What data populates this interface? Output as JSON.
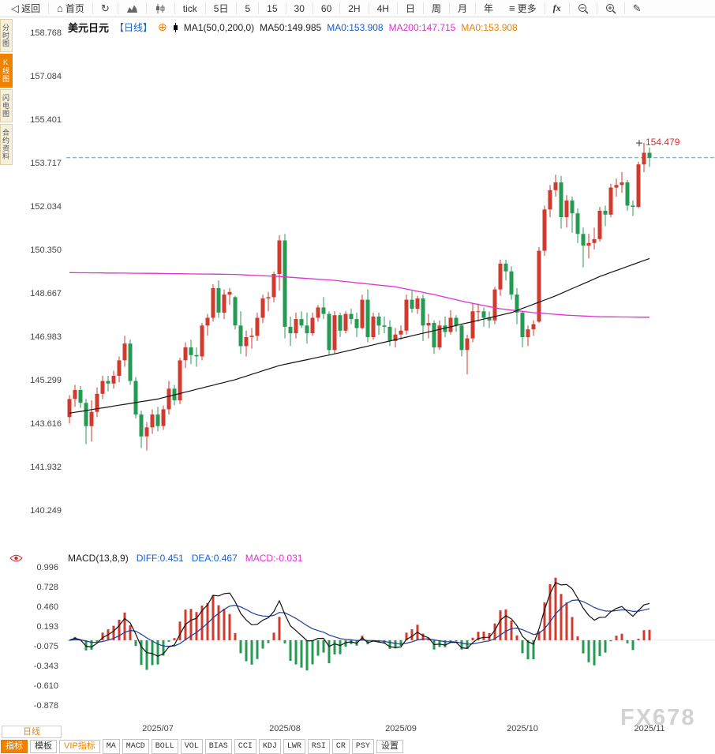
{
  "toolbar": {
    "back": "返回",
    "home": "首页",
    "periods": [
      "tick",
      "5日",
      "5",
      "15",
      "30",
      "60",
      "2H",
      "4H",
      "日",
      "周",
      "月",
      "年"
    ],
    "more": "更多",
    "fx": "fx"
  },
  "side_tabs": [
    {
      "label": "分时图",
      "active": false
    },
    {
      "label": "K线图",
      "active": true
    },
    {
      "label": "闪电图",
      "active": false
    },
    {
      "label": "合约资料",
      "active": false
    }
  ],
  "price_header": {
    "symbol": "美元日元",
    "period_tag": "【日线】",
    "ma_params": "MA1(50,0,200,0)",
    "ma50_label": "MA50:149.985",
    "ma0_blue": "MA0:153.908",
    "ma200_label": "MA200:147.715",
    "ma0_orange": "MA0:153.908"
  },
  "macd_header": {
    "params": "MACD(13,8,9)",
    "diff": "DIFF:0.451",
    "dea": "DEA:0.467",
    "macd": "MACD:-0.031"
  },
  "bottom": {
    "period_box": "日线",
    "tabs": [
      {
        "label": "指标",
        "style": "active"
      },
      {
        "label": "模板",
        "style": "plain"
      },
      {
        "label": "VIP指标",
        "style": "vip"
      },
      {
        "label": "MA",
        "style": "mono"
      },
      {
        "label": "MACD",
        "style": "mono"
      },
      {
        "label": "BOLL",
        "style": "mono"
      },
      {
        "label": "VOL",
        "style": "mono"
      },
      {
        "label": "BIAS",
        "style": "mono"
      },
      {
        "label": "CCI",
        "style": "mono"
      },
      {
        "label": "KDJ",
        "style": "mono"
      },
      {
        "label": "LWR",
        "style": "mono"
      },
      {
        "label": "RSI",
        "style": "mono"
      },
      {
        "label": "CR",
        "style": "mono"
      },
      {
        "label": "PSY",
        "style": "mono"
      },
      {
        "label": "设置",
        "style": "plain"
      }
    ]
  },
  "watermark": "FX678",
  "chart_data": [
    {
      "type": "candlestick",
      "title": "美元日元 日线",
      "y_ticks": [
        158.768,
        157.084,
        155.401,
        153.717,
        152.034,
        150.35,
        148.667,
        146.983,
        145.299,
        143.616,
        141.932,
        140.249
      ],
      "x_ticks": [
        "2025/07",
        "2025/08",
        "2025/09",
        "2025/10",
        "2025/11"
      ],
      "last_price": 153.908,
      "annotation": {
        "candle_date": "10-31",
        "price": 154.479,
        "label": "154.479"
      },
      "ma50_points": [
        [
          0,
          144.0
        ],
        [
          16,
          144.55
        ],
        [
          30,
          145.3
        ],
        [
          38,
          145.85
        ],
        [
          48,
          146.3
        ],
        [
          59,
          146.85
        ],
        [
          70,
          147.4
        ],
        [
          80,
          147.9
        ],
        [
          88,
          148.55
        ],
        [
          96,
          149.3
        ],
        [
          105,
          150.0
        ]
      ],
      "ma200_points": [
        [
          0,
          149.45
        ],
        [
          16,
          149.42
        ],
        [
          30,
          149.38
        ],
        [
          38,
          149.3
        ],
        [
          48,
          149.15
        ],
        [
          59,
          148.9
        ],
        [
          66,
          148.6
        ],
        [
          72,
          148.3
        ],
        [
          78,
          148.05
        ],
        [
          84,
          147.9
        ],
        [
          90,
          147.8
        ],
        [
          96,
          147.74
        ],
        [
          105,
          147.72
        ]
      ],
      "colors": {
        "up": "#cf3b2e",
        "down": "#249a52",
        "ma_fast": "#111111",
        "ma_slow": "#e12fd2",
        "price_line": "#2bb3bd",
        "marker": "#e22c2c",
        "diff_line": "#111111",
        "dea_line": "#1b3f9e",
        "hist_up": "#cf3b2e",
        "hist_down": "#249a52"
      },
      "candles": [
        [
          "06-09",
          143.85,
          144.7,
          143.6,
          144.55
        ],
        [
          "06-10",
          144.55,
          145.1,
          144.25,
          144.9
        ],
        [
          "06-11",
          144.9,
          145.05,
          144.2,
          144.4
        ],
        [
          "06-12",
          144.4,
          144.55,
          142.8,
          143.5
        ],
        [
          "06-13",
          143.5,
          144.5,
          142.9,
          144.05
        ],
        [
          "06-16",
          144.05,
          145.0,
          143.85,
          144.75
        ],
        [
          "06-17",
          144.75,
          145.45,
          144.55,
          145.25
        ],
        [
          "06-18",
          145.25,
          145.45,
          144.85,
          145.15
        ],
        [
          "06-19",
          145.15,
          145.65,
          144.95,
          145.45
        ],
        [
          "06-20",
          145.45,
          146.2,
          145.2,
          146.05
        ],
        [
          "06-23",
          146.05,
          147.0,
          145.8,
          146.7
        ],
        [
          "06-24",
          146.7,
          146.85,
          145.1,
          145.25
        ],
        [
          "06-25",
          145.25,
          145.4,
          143.8,
          143.95
        ],
        [
          "06-26",
          143.95,
          144.1,
          142.65,
          143.1
        ],
        [
          "06-27",
          143.1,
          143.65,
          142.55,
          143.45
        ],
        [
          "06-30",
          143.45,
          144.15,
          143.2,
          143.95
        ],
        [
          "07-01",
          143.95,
          144.25,
          143.3,
          143.5
        ],
        [
          "07-02",
          143.5,
          144.3,
          143.35,
          144.15
        ],
        [
          "07-03",
          144.15,
          145.25,
          143.95,
          144.95
        ],
        [
          "07-04",
          144.95,
          145.1,
          144.3,
          144.5
        ],
        [
          "07-07",
          144.5,
          146.15,
          144.35,
          146.05
        ],
        [
          "07-08",
          146.05,
          146.75,
          145.75,
          146.55
        ],
        [
          "07-09",
          146.55,
          146.85,
          145.9,
          146.25
        ],
        [
          "07-10",
          146.25,
          146.55,
          145.8,
          146.2
        ],
        [
          "07-11",
          146.2,
          147.5,
          146.05,
          147.4
        ],
        [
          "07-14",
          147.4,
          147.85,
          147.0,
          147.7
        ],
        [
          "07-15",
          147.7,
          149.0,
          147.55,
          148.85
        ],
        [
          "07-16",
          148.85,
          149.15,
          147.7,
          147.9
        ],
        [
          "07-17",
          147.9,
          148.8,
          147.65,
          148.6
        ],
        [
          "07-18",
          148.6,
          148.85,
          148.2,
          148.7
        ],
        [
          "07-21",
          148.5,
          148.55,
          147.25,
          147.4
        ],
        [
          "07-22",
          147.4,
          147.95,
          146.3,
          146.6
        ],
        [
          "07-23",
          146.6,
          147.2,
          146.2,
          146.95
        ],
        [
          "07-24",
          146.95,
          147.3,
          146.5,
          147.0
        ],
        [
          "07-25",
          147.0,
          147.9,
          146.8,
          147.7
        ],
        [
          "07-28",
          147.7,
          148.6,
          147.5,
          148.45
        ],
        [
          "07-29",
          148.45,
          148.7,
          147.95,
          148.5
        ],
        [
          "07-30",
          148.5,
          149.5,
          148.3,
          149.4
        ],
        [
          "07-31",
          149.4,
          150.9,
          148.75,
          150.7
        ],
        [
          "08-01",
          150.7,
          150.95,
          146.9,
          147.35
        ],
        [
          "08-04",
          147.35,
          147.75,
          146.6,
          147.1
        ],
        [
          "08-05",
          147.1,
          147.9,
          146.9,
          147.65
        ],
        [
          "08-06",
          147.65,
          147.95,
          147.3,
          147.4
        ],
        [
          "08-07",
          147.4,
          147.9,
          146.7,
          147.1
        ],
        [
          "08-08",
          147.1,
          147.9,
          147.0,
          147.7
        ],
        [
          "08-11",
          147.7,
          148.2,
          147.55,
          148.1
        ],
        [
          "08-12",
          148.1,
          148.5,
          147.65,
          147.85
        ],
        [
          "08-13",
          147.85,
          147.95,
          146.25,
          146.45
        ],
        [
          "08-14",
          146.45,
          147.95,
          146.3,
          147.8
        ],
        [
          "08-15",
          147.8,
          147.9,
          146.95,
          147.2
        ],
        [
          "08-18",
          147.2,
          147.95,
          147.1,
          147.85
        ],
        [
          "08-19",
          147.85,
          148.05,
          147.45,
          147.65
        ],
        [
          "08-20",
          147.65,
          147.9,
          146.95,
          147.3
        ],
        [
          "08-21",
          147.3,
          148.6,
          147.25,
          148.4
        ],
        [
          "08-22",
          148.4,
          148.8,
          146.75,
          146.95
        ],
        [
          "08-25",
          146.95,
          147.9,
          146.85,
          147.75
        ],
        [
          "08-26",
          147.75,
          147.9,
          147.05,
          147.4
        ],
        [
          "08-27",
          147.4,
          147.75,
          147.1,
          147.35
        ],
        [
          "08-28",
          147.35,
          147.6,
          146.6,
          146.8
        ],
        [
          "08-29",
          146.8,
          147.3,
          146.55,
          147.05
        ],
        [
          "09-01",
          147.05,
          147.4,
          146.85,
          147.2
        ],
        [
          "09-02",
          147.2,
          148.6,
          147.05,
          148.4
        ],
        [
          "09-03",
          148.4,
          148.75,
          147.9,
          148.05
        ],
        [
          "09-04",
          148.05,
          148.55,
          147.85,
          148.45
        ],
        [
          "09-05",
          148.45,
          148.6,
          146.8,
          147.4
        ],
        [
          "09-08",
          147.4,
          147.85,
          146.9,
          147.5
        ],
        [
          "09-09",
          147.5,
          147.6,
          146.3,
          146.55
        ],
        [
          "09-10",
          146.55,
          147.6,
          146.45,
          147.4
        ],
        [
          "09-11",
          147.4,
          147.75,
          146.95,
          147.15
        ],
        [
          "09-12",
          147.15,
          148.0,
          147.05,
          147.7
        ],
        [
          "09-15",
          147.7,
          147.8,
          147.15,
          147.4
        ],
        [
          "09-16",
          147.4,
          147.45,
          146.2,
          146.45
        ],
        [
          "09-17",
          146.45,
          147.05,
          145.5,
          146.9
        ],
        [
          "09-18",
          146.9,
          148.25,
          146.75,
          147.95
        ],
        [
          "09-19",
          147.95,
          148.25,
          147.55,
          147.95
        ],
        [
          "09-22",
          147.95,
          148.1,
          147.35,
          147.7
        ],
        [
          "09-23",
          147.7,
          147.95,
          147.3,
          147.6
        ],
        [
          "09-24",
          147.6,
          148.9,
          147.45,
          148.8
        ],
        [
          "09-25",
          148.8,
          149.95,
          148.55,
          149.8
        ],
        [
          "09-26",
          149.8,
          149.95,
          149.15,
          149.5
        ],
        [
          "09-29",
          149.5,
          149.7,
          148.4,
          148.6
        ],
        [
          "09-30",
          148.6,
          148.85,
          147.45,
          147.9
        ],
        [
          "10-01",
          147.9,
          147.95,
          146.55,
          146.95
        ],
        [
          "10-02",
          146.95,
          147.4,
          146.6,
          147.25
        ],
        [
          "10-03",
          147.25,
          147.6,
          147.0,
          147.45
        ],
        [
          "10-06",
          147.55,
          150.45,
          147.5,
          150.3
        ],
        [
          "10-07",
          150.3,
          152.05,
          150.1,
          151.9
        ],
        [
          "10-08",
          151.9,
          152.85,
          151.6,
          152.65
        ],
        [
          "10-09",
          152.65,
          153.25,
          152.4,
          152.95
        ],
        [
          "10-10",
          152.95,
          153.2,
          151.15,
          151.6
        ],
        [
          "10-13",
          151.6,
          152.45,
          151.2,
          152.25
        ],
        [
          "10-14",
          152.25,
          152.4,
          151.0,
          151.75
        ],
        [
          "10-15",
          151.75,
          151.95,
          150.6,
          150.95
        ],
        [
          "10-16",
          150.95,
          151.2,
          149.65,
          150.5
        ],
        [
          "10-17",
          150.5,
          150.95,
          150.0,
          150.6
        ],
        [
          "10-20",
          150.6,
          151.2,
          150.35,
          150.75
        ],
        [
          "10-21",
          150.75,
          152.0,
          150.65,
          151.85
        ],
        [
          "10-22",
          151.85,
          152.05,
          151.25,
          151.7
        ],
        [
          "10-23",
          151.7,
          152.9,
          151.6,
          152.75
        ],
        [
          "10-24",
          152.75,
          153.1,
          152.4,
          152.85
        ],
        [
          "10-27",
          152.85,
          153.35,
          152.55,
          152.95
        ],
        [
          "10-28",
          152.95,
          153.05,
          151.85,
          152.05
        ],
        [
          "10-29",
          152.05,
          152.25,
          151.65,
          152.0
        ],
        [
          "10-30",
          152.0,
          153.75,
          151.95,
          153.65
        ],
        [
          "10-31",
          153.65,
          154.48,
          153.35,
          154.1
        ],
        [
          "11-03",
          154.1,
          154.3,
          153.55,
          153.91
        ]
      ]
    },
    {
      "type": "macd",
      "params": "MACD(13,8,9)",
      "diff": 0.451,
      "dea": 0.467,
      "macd": -0.031,
      "y_ticks": [
        0.996,
        0.728,
        0.46,
        0.193,
        -0.075,
        -0.343,
        -0.61,
        -0.878
      ],
      "derived_from": "candles"
    }
  ]
}
